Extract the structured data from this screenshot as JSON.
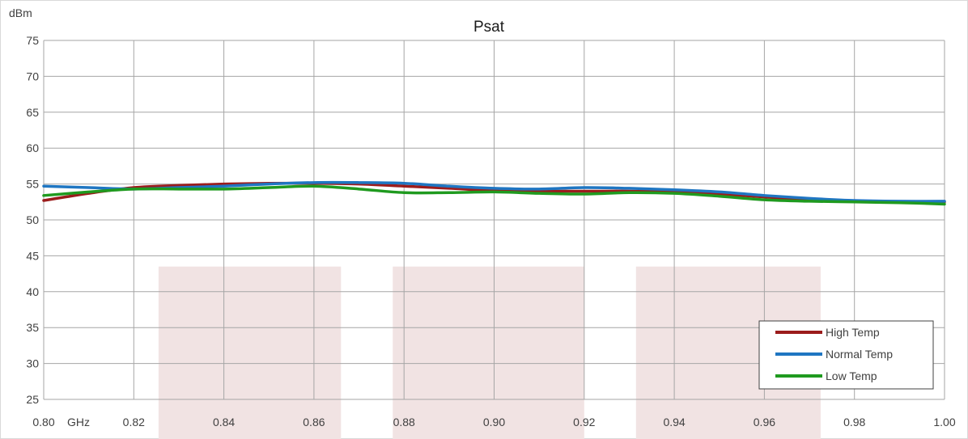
{
  "chart_data": {
    "type": "line",
    "title": "Psat",
    "ylabel": "dBm",
    "xlabel": "GHz",
    "xlim": [
      0.8,
      1.0
    ],
    "ylim": [
      25,
      75
    ],
    "x_ticks": [
      "0.80",
      "0.82",
      "0.84",
      "0.86",
      "0.88",
      "0.90",
      "0.92",
      "0.94",
      "0.96",
      "0.98",
      "1.00"
    ],
    "y_ticks": [
      "25",
      "30",
      "35",
      "40",
      "45",
      "50",
      "55",
      "60",
      "65",
      "70",
      "75"
    ],
    "grid": true,
    "legend_position": "bottom-right",
    "shaded_bands": [
      {
        "x_start": 0.8255,
        "x_end": 0.866,
        "y_top": 43.5
      },
      {
        "x_start": 0.8775,
        "x_end": 0.92,
        "y_top": 43.5
      },
      {
        "x_start": 0.9315,
        "x_end": 0.9725,
        "y_top": 43.5
      }
    ],
    "band_color": "#f1e3e3",
    "series": [
      {
        "name": "High Temp",
        "color": "#9b1c1c",
        "x": [
          0.8,
          0.81,
          0.82,
          0.83,
          0.84,
          0.85,
          0.86,
          0.87,
          0.88,
          0.89,
          0.9,
          0.91,
          0.92,
          0.93,
          0.94,
          0.95,
          0.96,
          0.97,
          0.98,
          0.99,
          1.0
        ],
        "values": [
          52.7,
          53.7,
          54.5,
          54.8,
          55.0,
          55.1,
          55.1,
          55.0,
          54.7,
          54.4,
          54.1,
          54.0,
          54.0,
          54.0,
          53.9,
          53.6,
          53.2,
          52.8,
          52.6,
          52.5,
          52.5
        ]
      },
      {
        "name": "Normal Temp",
        "color": "#1f76c2",
        "x": [
          0.8,
          0.81,
          0.82,
          0.83,
          0.84,
          0.85,
          0.86,
          0.87,
          0.88,
          0.89,
          0.9,
          0.91,
          0.92,
          0.93,
          0.94,
          0.95,
          0.96,
          0.97,
          0.98,
          0.99,
          1.0
        ],
        "values": [
          54.7,
          54.5,
          54.3,
          54.5,
          54.7,
          55.0,
          55.2,
          55.2,
          55.1,
          54.7,
          54.4,
          54.3,
          54.5,
          54.4,
          54.2,
          53.9,
          53.4,
          53.0,
          52.7,
          52.6,
          52.6
        ]
      },
      {
        "name": "Low Temp",
        "color": "#1f9a1f",
        "x": [
          0.8,
          0.81,
          0.82,
          0.83,
          0.84,
          0.85,
          0.86,
          0.87,
          0.88,
          0.89,
          0.9,
          0.91,
          0.92,
          0.93,
          0.94,
          0.95,
          0.96,
          0.97,
          0.98,
          0.99,
          1.0
        ],
        "values": [
          53.4,
          53.9,
          54.3,
          54.3,
          54.3,
          54.5,
          54.7,
          54.3,
          53.8,
          53.8,
          53.9,
          53.7,
          53.6,
          53.8,
          53.7,
          53.3,
          52.8,
          52.6,
          52.5,
          52.4,
          52.2
        ]
      }
    ]
  }
}
